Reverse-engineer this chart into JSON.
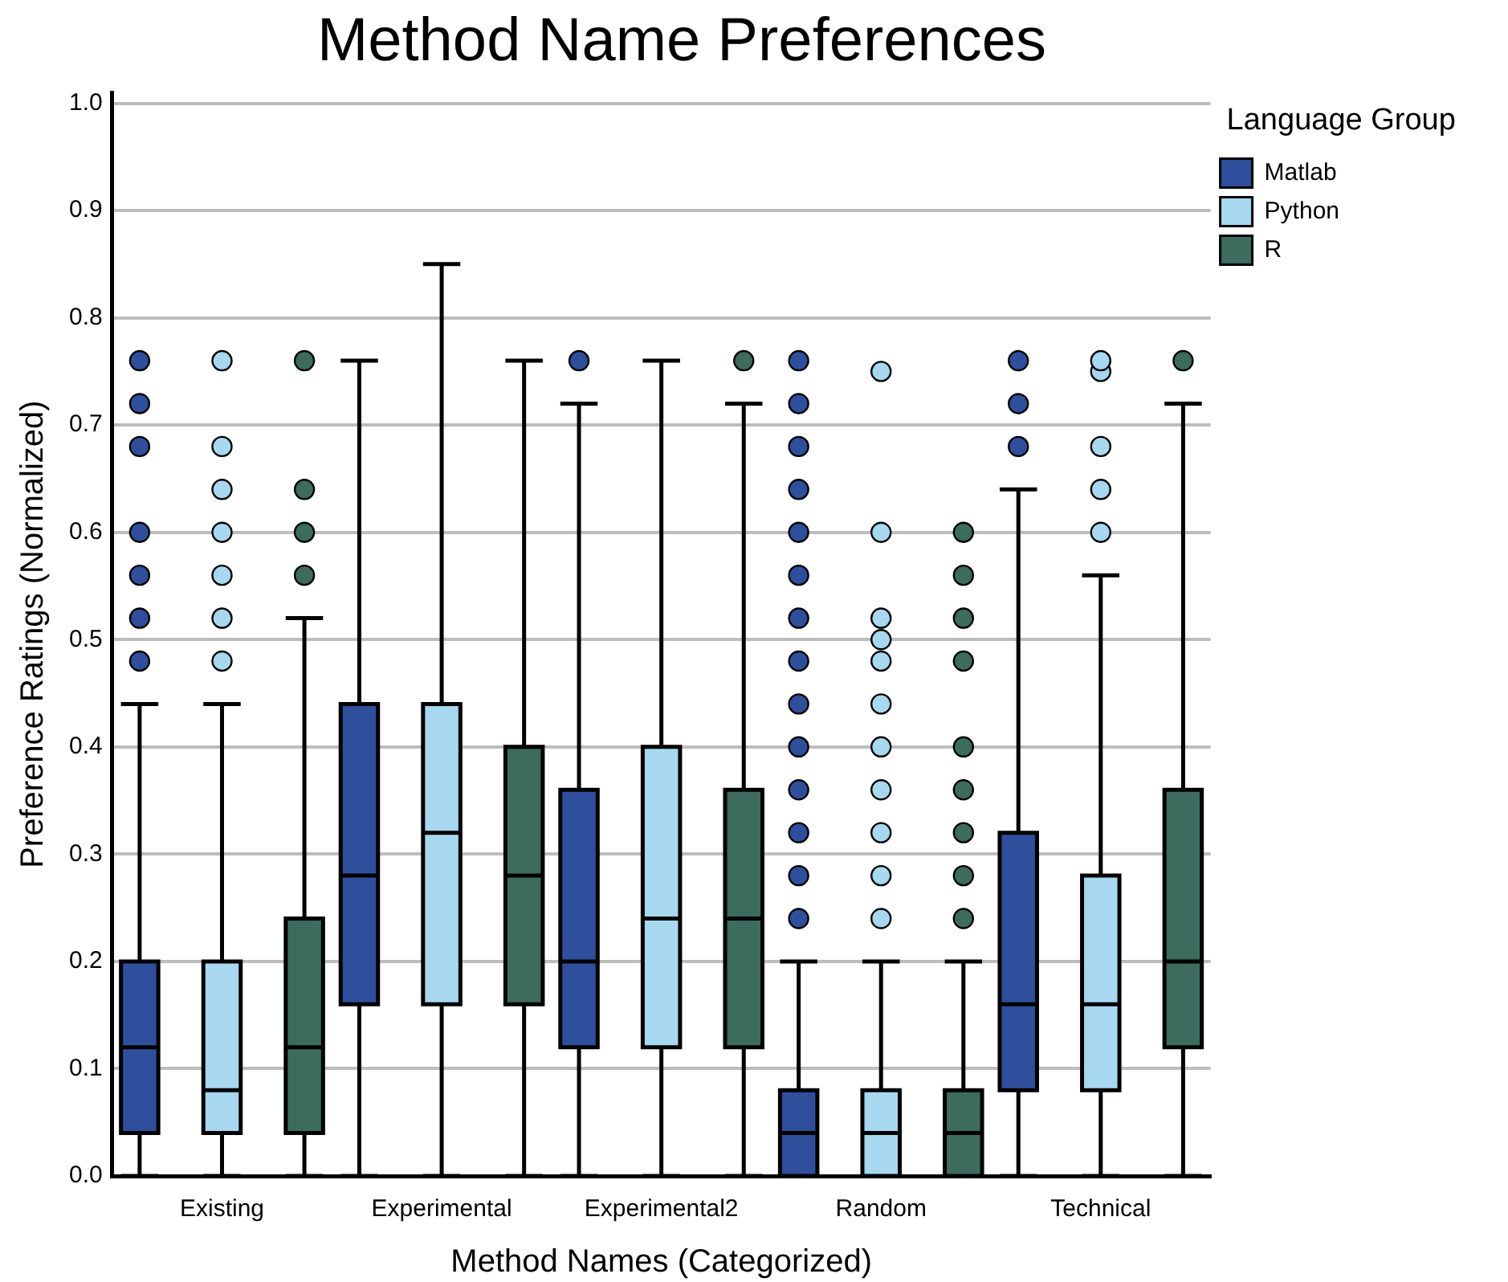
{
  "chart_data": {
    "type": "box",
    "title": "Method Name Preferences",
    "xlabel": "Method Names (Categorized)",
    "ylabel": "Preference Ratings (Normalized)",
    "legend_title": "Language Group",
    "categories": [
      "Existing",
      "Experimental",
      "Experimental2",
      "Random",
      "Technical"
    ],
    "ylim": [
      0,
      1.01
    ],
    "yticks": [
      {
        "value": 0,
        "label": "0.0"
      },
      {
        "value": 0.1,
        "label": "0.1"
      },
      {
        "value": 0.2,
        "label": "0.2"
      },
      {
        "value": 0.3,
        "label": "0.3"
      },
      {
        "value": 0.4,
        "label": "0.4"
      },
      {
        "value": 0.5,
        "label": "0.5"
      },
      {
        "value": 0.6,
        "label": "0.6"
      },
      {
        "value": 0.7,
        "label": "0.7"
      },
      {
        "value": 0.8,
        "label": "0.8"
      },
      {
        "value": 0.9,
        "label": "0.9"
      },
      {
        "value": 1,
        "label": "1.0"
      }
    ],
    "grid": "y",
    "legend": "top right",
    "marker": "circle",
    "series": [
      {
        "name": "Matlab",
        "color": "#2f4f9c",
        "boxes": [
          {
            "low": 0,
            "q1": 0.04,
            "median": 0.12,
            "q3": 0.2,
            "high": 0.44,
            "outliers": [
              0.48,
              0.52,
              0.56,
              0.6,
              0.68,
              0.72,
              0.76
            ]
          },
          {
            "low": 0,
            "q1": 0.16,
            "median": 0.28,
            "q3": 0.44,
            "high": 0.76
          },
          {
            "low": 0,
            "q1": 0.12,
            "median": 0.2,
            "q3": 0.36,
            "high": 0.72,
            "outliers": [
              0.76
            ]
          },
          {
            "low": 0,
            "q1": 0,
            "median": 0.04,
            "q3": 0.08,
            "high": 0.2,
            "outliers": [
              0.24,
              0.28,
              0.32,
              0.36,
              0.4,
              0.44,
              0.48,
              0.52,
              0.56,
              0.6,
              0.64,
              0.68,
              0.72,
              0.76
            ]
          },
          {
            "low": 0,
            "q1": 0.08,
            "median": 0.16,
            "q3": 0.32,
            "high": 0.64,
            "outliers": [
              0.68,
              0.72,
              0.76
            ]
          }
        ]
      },
      {
        "name": "Python",
        "color": "#a8d8f0",
        "boxes": [
          {
            "low": 0,
            "q1": 0.04,
            "median": 0.08,
            "q3": 0.2,
            "high": 0.44,
            "outliers": [
              0.48,
              0.52,
              0.56,
              0.6,
              0.64,
              0.68,
              0.76
            ]
          },
          {
            "low": 0,
            "q1": 0.16,
            "median": 0.32,
            "q3": 0.44,
            "high": 0.85
          },
          {
            "low": 0,
            "q1": 0.12,
            "median": 0.24,
            "q3": 0.4,
            "high": 0.76
          },
          {
            "low": 0,
            "q1": 0,
            "median": 0.04,
            "q3": 0.08,
            "high": 0.2,
            "outliers": [
              0.24,
              0.28,
              0.32,
              0.36,
              0.4,
              0.44,
              0.48,
              0.5,
              0.52,
              0.6,
              0.75
            ]
          },
          {
            "low": 0,
            "q1": 0.08,
            "median": 0.16,
            "q3": 0.28,
            "high": 0.56,
            "outliers": [
              0.6,
              0.64,
              0.68,
              0.75,
              0.76
            ]
          }
        ]
      },
      {
        "name": "R",
        "color": "#3d6b5e",
        "boxes": [
          {
            "low": 0,
            "q1": 0.04,
            "median": 0.12,
            "q3": 0.24,
            "high": 0.52,
            "outliers": [
              0.56,
              0.6,
              0.64,
              0.76
            ]
          },
          {
            "low": 0,
            "q1": 0.16,
            "median": 0.28,
            "q3": 0.4,
            "high": 0.76
          },
          {
            "low": 0,
            "q1": 0.12,
            "median": 0.24,
            "q3": 0.36,
            "high": 0.72,
            "outliers": [
              0.76
            ]
          },
          {
            "low": 0,
            "q1": 0,
            "median": 0.04,
            "q3": 0.08,
            "high": 0.2,
            "outliers": [
              0.24,
              0.28,
              0.32,
              0.36,
              0.4,
              0.48,
              0.52,
              0.56,
              0.6
            ]
          },
          {
            "low": 0,
            "q1": 0.12,
            "median": 0.2,
            "q3": 0.36,
            "high": 0.72,
            "outliers": [
              0.76
            ]
          }
        ]
      }
    ]
  }
}
